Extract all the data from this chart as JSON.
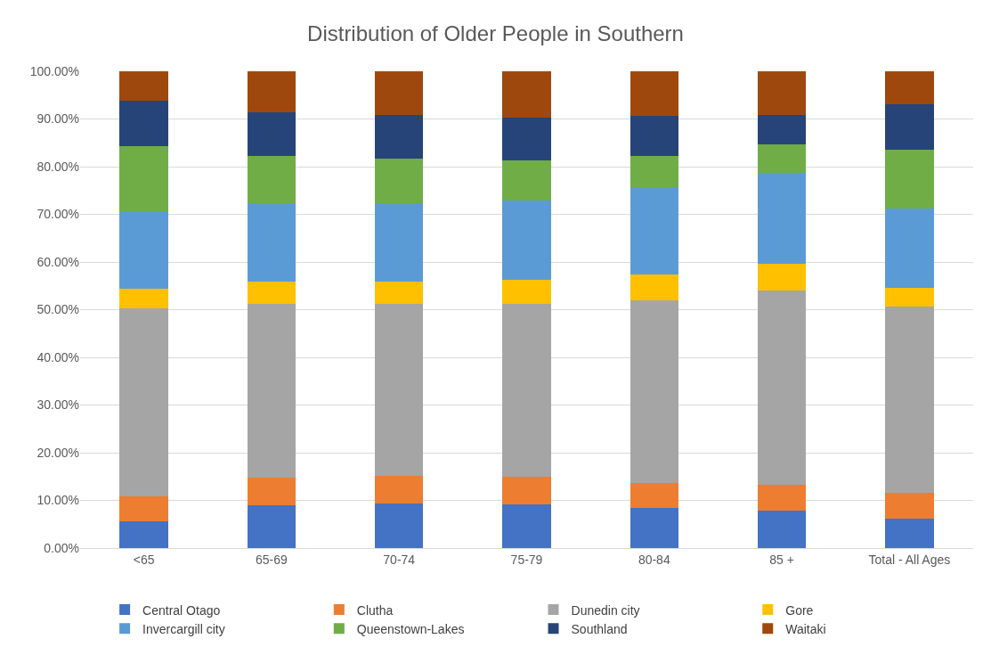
{
  "chart_data": {
    "type": "bar",
    "title": "Distribution of Older People in Southern",
    "stacked": true,
    "categories": [
      "<65",
      "65-69",
      "70-74",
      "75-79",
      "80-84",
      "85 +",
      "Total - All Ages"
    ],
    "series": [
      {
        "name": "Central Otago",
        "color": "#4472c4",
        "values": [
          5.7,
          9.0,
          9.3,
          9.2,
          8.4,
          7.9,
          6.1
        ]
      },
      {
        "name": "Clutha",
        "color": "#ed7d31",
        "values": [
          5.1,
          5.7,
          5.8,
          5.7,
          5.3,
          5.3,
          5.4
        ]
      },
      {
        "name": "Dunedin city",
        "color": "#a5a5a5",
        "values": [
          39.4,
          36.6,
          36.2,
          36.4,
          38.3,
          40.9,
          39.1
        ]
      },
      {
        "name": "Gore",
        "color": "#ffc000",
        "values": [
          4.2,
          4.5,
          4.5,
          4.9,
          5.4,
          5.6,
          4.0
        ]
      },
      {
        "name": "Invercargill city",
        "color": "#5b9bd5",
        "values": [
          16.3,
          16.3,
          16.3,
          16.7,
          18.2,
          19.0,
          16.7
        ]
      },
      {
        "name": "Queenstown-Lakes",
        "color": "#70ad47",
        "values": [
          13.6,
          10.2,
          9.6,
          8.4,
          6.7,
          6.0,
          12.3
        ]
      },
      {
        "name": "Southland",
        "color": "#264478",
        "values": [
          9.5,
          9.1,
          9.2,
          8.9,
          8.3,
          6.2,
          9.5
        ]
      },
      {
        "name": "Waitaki",
        "color": "#9e480e",
        "values": [
          6.2,
          8.6,
          9.1,
          9.8,
          9.4,
          9.1,
          6.9
        ]
      }
    ],
    "ylim": [
      0,
      100
    ],
    "yticks": [
      {
        "value": 0,
        "label": "0.00%"
      },
      {
        "value": 10,
        "label": "10.00%"
      },
      {
        "value": 20,
        "label": "20.00%"
      },
      {
        "value": 30,
        "label": "30.00%"
      },
      {
        "value": 40,
        "label": "40.00%"
      },
      {
        "value": 50,
        "label": "50.00%"
      },
      {
        "value": 60,
        "label": "60.00%"
      },
      {
        "value": 70,
        "label": "70.00%"
      },
      {
        "value": 80,
        "label": "80.00%"
      },
      {
        "value": 90,
        "label": "90.00%"
      },
      {
        "value": 100,
        "label": "100.00%"
      }
    ],
    "grid": "y",
    "legend": "bottom"
  }
}
